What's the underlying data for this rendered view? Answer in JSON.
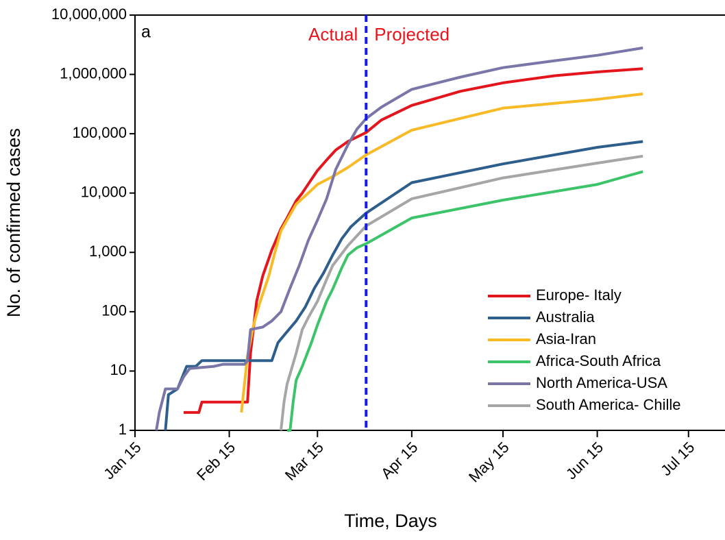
{
  "chart_data": {
    "type": "line",
    "x_label": "Time, Days",
    "y_label": "No. of  confirmed cases",
    "log_y": true,
    "xlim": [
      "Jan 15",
      "Jul 27"
    ],
    "xticks": [
      "Jan 15",
      "Feb 15",
      "Mar 15",
      "Apr 15",
      "May 15",
      "Jun 15",
      "Jul 15"
    ],
    "ylim": [
      1,
      10000000
    ],
    "yticks": [
      1,
      10,
      100,
      {
        "value": 1000,
        "label": "1,000"
      },
      {
        "value": 10000,
        "label": "10,000"
      },
      {
        "value": 100000,
        "label": "100,000"
      },
      {
        "value": 1000000,
        "label": "1,000,000"
      },
      {
        "value": 10000000,
        "label": "10,000,000"
      }
    ],
    "divider_x": "Mar 31",
    "divider_color": "#1a1ae6",
    "annotations": {
      "panel": "a",
      "left": "Actual",
      "right": "Projected",
      "color": "#e8141c"
    },
    "legend": "lower right",
    "series": [
      {
        "name": "Europe- Italy",
        "color": "#e3151d",
        "x": [
          "Jan 31",
          "Feb 5",
          "Feb 6",
          "Feb 20",
          "Feb 21",
          "Feb 22",
          "Feb 24",
          "Feb 26",
          "Feb 29",
          "Mar 3",
          "Mar 5",
          "Mar 8",
          "Mar 10",
          "Mar 13",
          "Mar 15",
          "Mar 18",
          "Mar 21",
          "Mar 25",
          "Mar 31",
          "Apr 5",
          "Apr 15",
          "May 1",
          "May 15",
          "Jun 1",
          "Jun 15",
          "Jun 30"
        ],
        "values": [
          2,
          2,
          3,
          3,
          3,
          20,
          150,
          400,
          1100,
          2500,
          3800,
          7400,
          10000,
          17000,
          24000,
          36000,
          53000,
          74000,
          105000,
          170000,
          300000,
          520000,
          720000,
          950000,
          1100000,
          1250000
        ]
      },
      {
        "name": "Australia",
        "color": "#2e5f8c",
        "x": [
          "Jan 25",
          "Jan 26",
          "Jan 29",
          "Jan 31",
          "Feb 1",
          "Feb 4",
          "Feb 6",
          "Feb 29",
          "Mar 2",
          "Mar 4",
          "Mar 8",
          "Mar 11",
          "Mar 14",
          "Mar 17",
          "Mar 20",
          "Mar 23",
          "Mar 26",
          "Mar 31",
          "Apr 15",
          "May 15",
          "Jun 15",
          "Jun 30"
        ],
        "values": [
          1,
          4,
          5,
          9,
          12,
          12,
          15,
          15,
          30,
          40,
          70,
          120,
          250,
          450,
          900,
          1700,
          2700,
          4600,
          15000,
          31000,
          59000,
          74000
        ]
      },
      {
        "name": "Asia-Iran",
        "color": "#f8bb27",
        "x": [
          "Feb 19",
          "Feb 21",
          "Feb 23",
          "Feb 25",
          "Feb 28",
          "Mar 1",
          "Mar 3",
          "Mar 5",
          "Mar 8",
          "Mar 12",
          "Mar 15",
          "Mar 20",
          "Mar 25",
          "Mar 31",
          "Apr 15",
          "May 15",
          "Jun 15",
          "Jun 30"
        ],
        "values": [
          2,
          18,
          60,
          140,
          400,
          1000,
          2300,
          3500,
          6500,
          10000,
          14000,
          19000,
          27000,
          44000,
          115000,
          270000,
          380000,
          470000
        ]
      },
      {
        "name": "Africa-South Africa",
        "color": "#3dc46b",
        "x": [
          "Mar 5",
          "Mar 6",
          "Mar 7",
          "Mar 8",
          "Mar 10",
          "Mar 13",
          "Mar 15",
          "Mar 18",
          "Mar 20",
          "Mar 23",
          "Mar 25",
          "Mar 28",
          "Mar 31",
          "Apr 15",
          "May 15",
          "Jun 15",
          "Jun 30"
        ],
        "values": [
          1,
          1,
          3,
          7,
          12,
          30,
          60,
          150,
          240,
          550,
          900,
          1200,
          1400,
          3800,
          7600,
          14000,
          23000
        ]
      },
      {
        "name": "North America-USA",
        "color": "#7a76a8",
        "x": [
          "Jan 22",
          "Jan 23",
          "Jan 25",
          "Jan 29",
          "Jan 31",
          "Feb 2",
          "Feb 10",
          "Feb 13",
          "Feb 20",
          "Feb 21",
          "Feb 22",
          "Feb 26",
          "Feb 29",
          "Mar 3",
          "Mar 6",
          "Mar 9",
          "Mar 12",
          "Mar 15",
          "Mar 18",
          "Mar 21",
          "Mar 25",
          "Mar 28",
          "Mar 31",
          "Apr 5",
          "Apr 15",
          "May 1",
          "May 15",
          "Jun 1",
          "Jun 15",
          "Jun 30"
        ],
        "values": [
          1,
          2,
          5,
          5,
          8,
          11,
          12,
          13,
          13,
          15,
          50,
          55,
          70,
          100,
          250,
          600,
          1600,
          3500,
          8000,
          25000,
          65000,
          120000,
          180000,
          280000,
          560000,
          900000,
          1300000,
          1700000,
          2100000,
          2800000
        ]
      },
      {
        "name": "South America- Chille",
        "color": "#a6a6a6",
        "x": [
          "Mar 3",
          "Mar 4",
          "Mar 5",
          "Mar 8",
          "Mar 10",
          "Mar 12",
          "Mar 15",
          "Mar 18",
          "Mar 20",
          "Mar 25",
          "Mar 31",
          "Apr 15",
          "May 15",
          "Jun 15",
          "Jun 30"
        ],
        "values": [
          1,
          3,
          6,
          20,
          50,
          80,
          150,
          350,
          600,
          1300,
          2800,
          8000,
          18000,
          32000,
          42000
        ]
      }
    ]
  }
}
